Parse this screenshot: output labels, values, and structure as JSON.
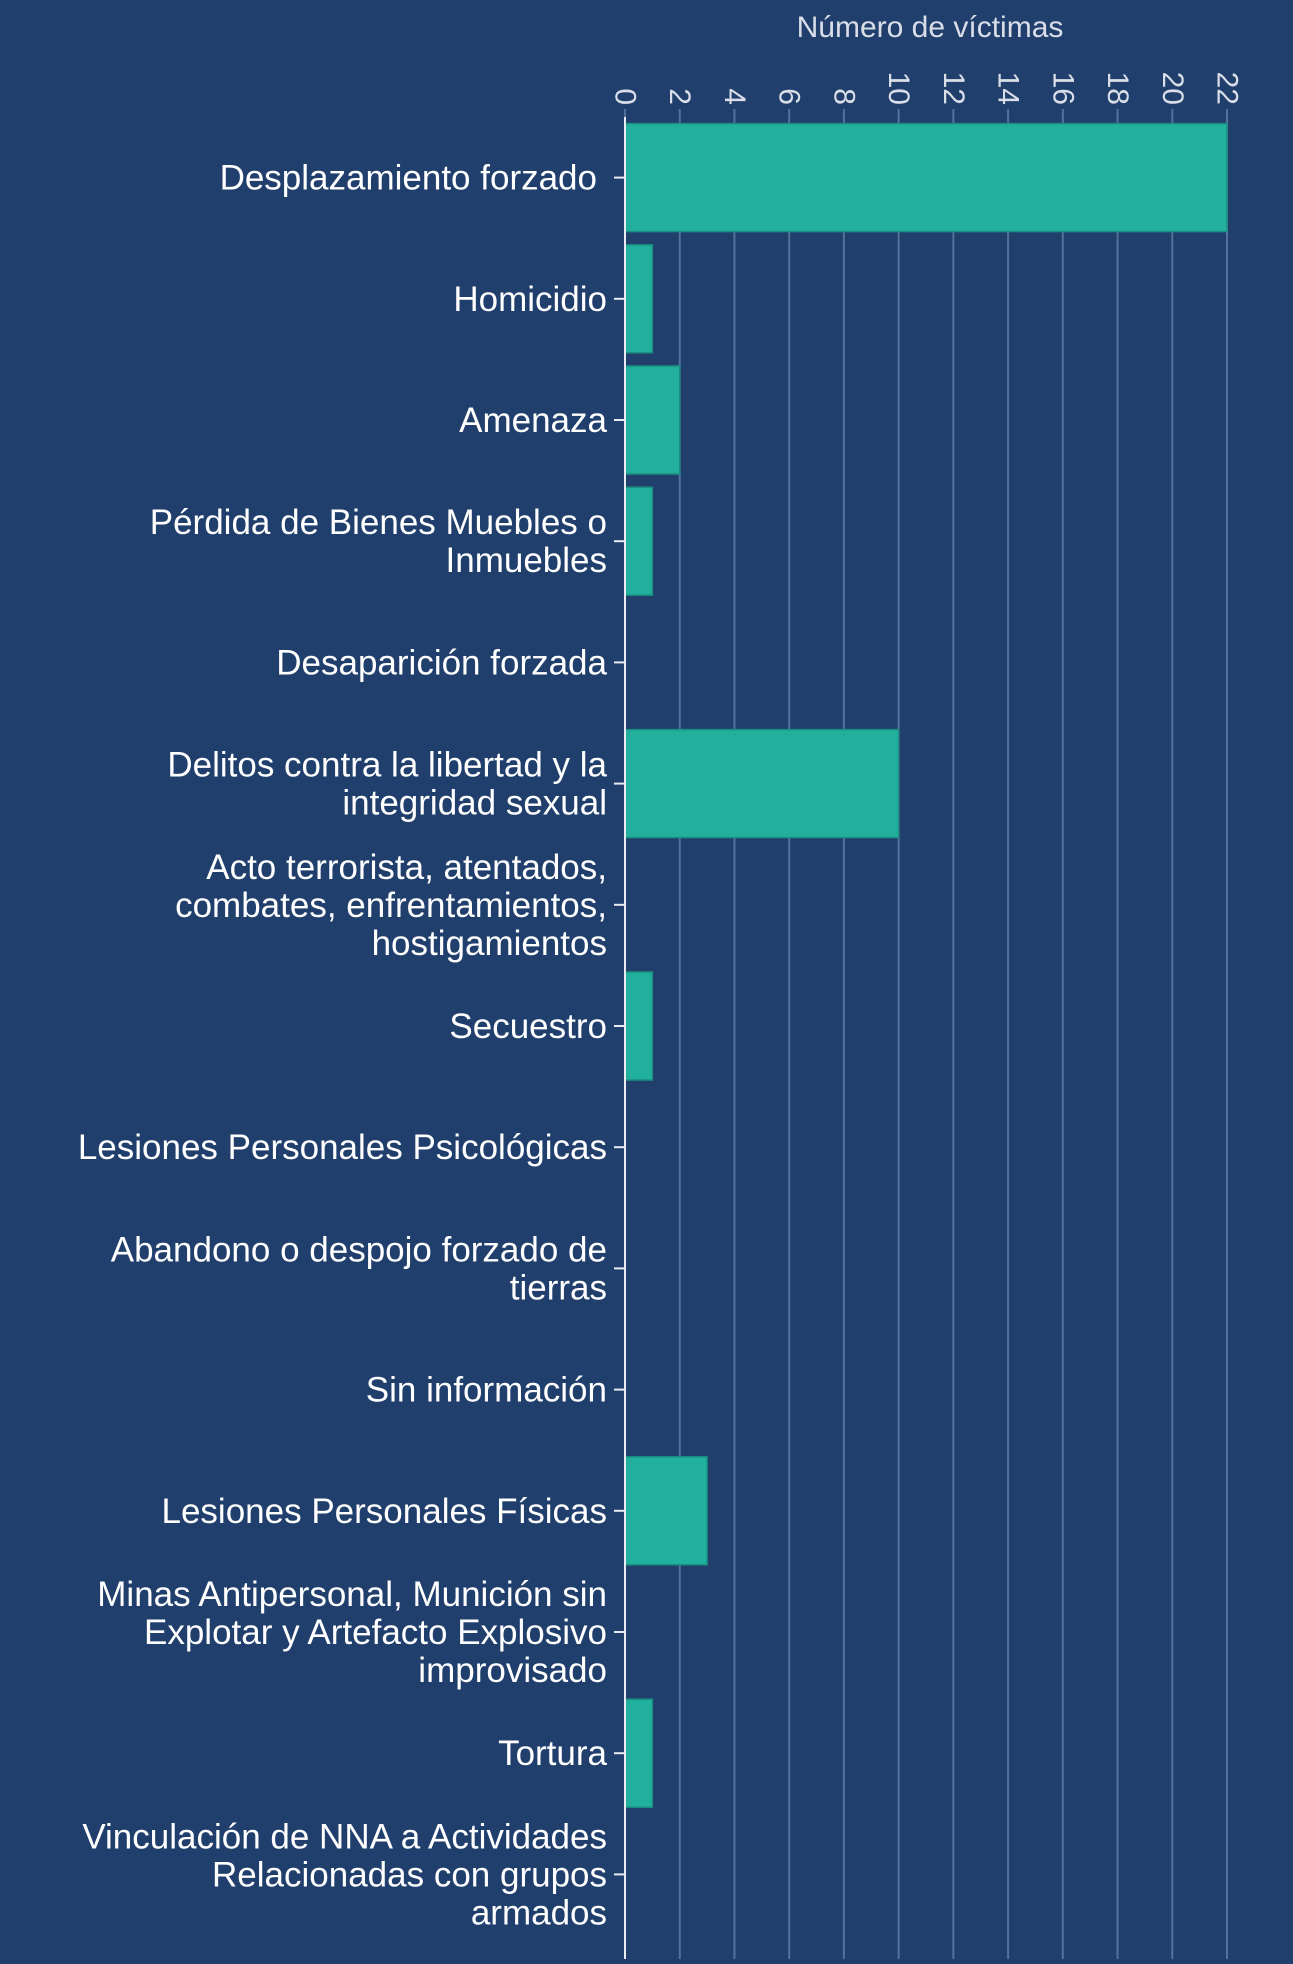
{
  "chart_data": {
    "type": "bar",
    "orientation": "horizontal",
    "title": "",
    "xlabel": "Número de víctimas",
    "ylabel": "",
    "xlim": [
      0,
      22
    ],
    "x_ticks": [
      0,
      2,
      4,
      6,
      8,
      10,
      12,
      14,
      16,
      18,
      20,
      22
    ],
    "axis_position": "top",
    "grid": true,
    "colors": {
      "background": "#213f6d",
      "bar": "#20b09d",
      "bar_stroke": "#1a8f80",
      "grid": "#55709a",
      "text": "#ffffff",
      "axis_label": "#d9dee8"
    },
    "categories": [
      [
        "Desplazamiento forzado"
      ],
      [
        "Homicidio"
      ],
      [
        "Amenaza"
      ],
      [
        "Pérdida de Bienes Muebles o",
        "Inmuebles"
      ],
      [
        "Desaparición forzada"
      ],
      [
        "Delitos contra la libertad y la",
        "integridad sexual"
      ],
      [
        "Acto terrorista, atentados,",
        "combates, enfrentamientos,",
        "hostigamientos"
      ],
      [
        "Secuestro"
      ],
      [
        "Lesiones Personales Psicológicas"
      ],
      [
        "Abandono o despojo forzado de",
        "tierras"
      ],
      [
        "Sin información"
      ],
      [
        "Lesiones Personales Físicas"
      ],
      [
        "Minas Antipersonal, Munición sin",
        "Explotar y Artefacto Explosivo",
        "improvisado"
      ],
      [
        "Tortura"
      ],
      [
        "Vinculación de NNA a Actividades",
        "Relacionadas con grupos",
        "armados"
      ]
    ],
    "values": [
      22,
      1,
      2,
      1,
      0,
      10,
      0,
      1,
      0,
      0,
      0,
      3,
      0,
      1,
      0
    ]
  }
}
